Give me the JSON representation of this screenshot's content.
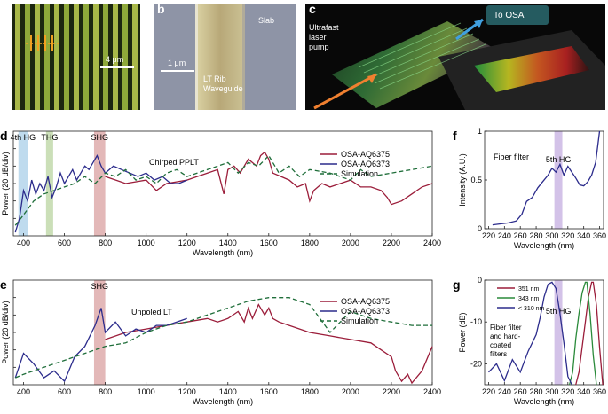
{
  "panels": {
    "a": {
      "label": "a",
      "scalebar": "4 μm"
    },
    "b": {
      "label": "b",
      "scalebar": "1 μm",
      "slab": "Slab",
      "waveguide_line1": "LT Rib",
      "waveguide_line2": "Waveguide"
    },
    "c": {
      "label": "c",
      "osa": "To OSA",
      "pump_line1": "Ultrafast",
      "pump_line2": "laser",
      "pump_line3": "pump"
    },
    "d": {
      "label": "d",
      "annotation": "Chirped PPLT",
      "bands": [
        "4th HG",
        "THG",
        "SHG"
      ]
    },
    "e": {
      "label": "e",
      "annotation": "Unpoled LT",
      "bands": [
        "SHG"
      ]
    },
    "f": {
      "label": "f",
      "annotation": "Fiber filter",
      "band": "5th HG"
    },
    "g": {
      "label": "g",
      "annotation_line1": "Fiber filter",
      "annotation_line2": "and hard-",
      "annotation_line3": "coated",
      "annotation_line4": "filters",
      "band": "5th HG"
    }
  },
  "colors": {
    "osa6375": "#9b1d3a",
    "osa6373": "#2c2c8c",
    "simulation": "#1f6e3a",
    "green343": "#2a8a3a"
  },
  "chart_data": [
    {
      "panel": "d",
      "type": "line",
      "xlabel": "Wavelength (nm)",
      "ylabel": "Power (20 dB/div)",
      "xlim": [
        350,
        2400
      ],
      "xticks": [
        400,
        600,
        800,
        1000,
        1200,
        1400,
        1600,
        1800,
        2000,
        2200,
        2400
      ],
      "legend": [
        "OSA-AQ6375",
        "OSA-AQ6373",
        "Simulation"
      ],
      "legend_position": "top-right",
      "shaded_bands": [
        {
          "label": "4th HG",
          "range": [
            375,
            420
          ],
          "color": "#a9cfe8"
        },
        {
          "label": "THG",
          "range": [
            510,
            545
          ],
          "color": "#b9d4a0"
        },
        {
          "label": "SHG",
          "range": [
            745,
            800
          ],
          "color": "#d9a0a0"
        }
      ],
      "series": [
        {
          "name": "OSA-AQ6375",
          "x": [
            800,
            900,
            1000,
            1050,
            1100,
            1200,
            1250,
            1300,
            1350,
            1380,
            1400,
            1430,
            1460,
            1500,
            1540,
            1560,
            1580,
            1600,
            1620,
            1660,
            1700,
            1740,
            1780,
            1800,
            1820,
            1860,
            1900,
            1950,
            2000,
            2050,
            2100,
            2150,
            2180,
            2200,
            2250,
            2300,
            2350,
            2400
          ],
          "y": [
            3.4,
            3.0,
            3.2,
            2.6,
            3.0,
            3.2,
            3.4,
            3.6,
            3.8,
            2.4,
            3.8,
            4.0,
            3.6,
            4.4,
            4.0,
            4.6,
            4.8,
            4.4,
            3.6,
            3.4,
            3.2,
            2.8,
            3.0,
            2.0,
            2.6,
            3.0,
            2.8,
            3.0,
            3.2,
            2.8,
            2.8,
            2.6,
            2.2,
            1.8,
            2.0,
            2.4,
            2.8,
            3.0
          ]
        },
        {
          "name": "OSA-AQ6373",
          "x": [
            360,
            380,
            400,
            420,
            440,
            460,
            480,
            500,
            520,
            540,
            560,
            580,
            600,
            620,
            640,
            660,
            680,
            700,
            720,
            740,
            760,
            780,
            800,
            840,
            880,
            920,
            960,
            1000,
            1040,
            1080,
            1120,
            1160,
            1200
          ],
          "y": [
            0.2,
            1.0,
            2.6,
            2.0,
            3.2,
            2.4,
            3.0,
            2.6,
            3.4,
            2.2,
            2.8,
            3.6,
            3.0,
            3.4,
            3.8,
            3.2,
            3.6,
            4.0,
            3.8,
            4.2,
            4.6,
            4.0,
            3.6,
            4.0,
            3.8,
            3.6,
            3.4,
            3.6,
            3.2,
            3.4,
            3.0,
            3.0,
            3.2
          ]
        },
        {
          "name": "Simulation",
          "x": [
            360,
            400,
            450,
            500,
            550,
            600,
            650,
            700,
            750,
            800,
            850,
            900,
            950,
            1000,
            1050,
            1100,
            1150,
            1200,
            1300,
            1400,
            1450,
            1500,
            1550,
            1600,
            1650,
            1700,
            1750,
            1800,
            1900,
            2000,
            2050,
            2100,
            2200,
            2300,
            2400
          ],
          "y": [
            0.6,
            1.2,
            2.0,
            2.4,
            2.6,
            2.8,
            3.0,
            3.4,
            3.0,
            3.6,
            3.4,
            3.8,
            3.2,
            3.4,
            3.0,
            3.6,
            3.8,
            3.4,
            3.8,
            4.2,
            3.6,
            4.2,
            4.0,
            4.6,
            3.6,
            4.0,
            3.4,
            3.8,
            3.6,
            3.2,
            3.8,
            3.4,
            3.6,
            3.8,
            4.0
          ]
        }
      ]
    },
    {
      "panel": "e",
      "type": "line",
      "xlabel": "Wavelength (nm)",
      "ylabel": "Power (20 dB/div)",
      "xlim": [
        350,
        2400
      ],
      "xticks": [
        400,
        600,
        800,
        1000,
        1200,
        1400,
        1600,
        1800,
        2000,
        2200,
        2400
      ],
      "legend": [
        "OSA-AQ6375",
        "OSA-AQ6373",
        "Simulation"
      ],
      "legend_position": "top-right",
      "shaded_bands": [
        {
          "label": "SHG",
          "range": [
            745,
            800
          ],
          "color": "#d9a0a0"
        }
      ],
      "series": [
        {
          "name": "OSA-AQ6375",
          "x": [
            800,
            900,
            1000,
            1100,
            1200,
            1300,
            1350,
            1400,
            1450,
            1480,
            1500,
            1520,
            1550,
            1580,
            1600,
            1620,
            1650,
            1700,
            1800,
            1900,
            2000,
            2100,
            2150,
            2200,
            2220,
            2250,
            2280,
            2300,
            2350,
            2400
          ],
          "y": [
            2.6,
            3.0,
            3.2,
            3.4,
            3.6,
            3.8,
            3.6,
            3.8,
            4.2,
            3.6,
            4.4,
            3.8,
            4.6,
            4.0,
            4.4,
            3.8,
            3.6,
            3.4,
            3.0,
            2.8,
            2.6,
            2.4,
            2.0,
            1.6,
            0.8,
            0.2,
            0.6,
            0.1,
            0.8,
            2.2
          ]
        },
        {
          "name": "OSA-AQ6373",
          "x": [
            360,
            400,
            450,
            500,
            550,
            600,
            650,
            700,
            750,
            780,
            800,
            850,
            900,
            950,
            1000,
            1050,
            1100,
            1150,
            1200
          ],
          "y": [
            0.4,
            1.8,
            1.2,
            0.4,
            0.8,
            0.2,
            1.6,
            2.2,
            3.4,
            4.4,
            3.0,
            3.6,
            2.8,
            3.2,
            3.0,
            3.4,
            3.4,
            3.6,
            3.8
          ]
        },
        {
          "name": "Simulation",
          "x": [
            360,
            400,
            500,
            600,
            700,
            800,
            900,
            1000,
            1100,
            1200,
            1300,
            1400,
            1500,
            1600,
            1700,
            1800,
            1900,
            2000,
            2100,
            2200,
            2300,
            2400
          ],
          "y": [
            0.4,
            0.6,
            1.0,
            1.4,
            1.8,
            2.2,
            2.4,
            3.0,
            3.4,
            3.6,
            4.0,
            4.4,
            4.8,
            5.0,
            5.0,
            4.6,
            3.0,
            4.2,
            3.8,
            3.6,
            3.4,
            3.4
          ]
        }
      ]
    },
    {
      "panel": "f",
      "type": "line",
      "xlabel": "Wavelength (nm)",
      "ylabel": "Intensity (A.U.)",
      "xlim": [
        215,
        365
      ],
      "ylim": [
        0,
        1
      ],
      "xticks": [
        220,
        240,
        260,
        280,
        300,
        320,
        340,
        360
      ],
      "yticks": [
        0,
        0.5,
        1
      ],
      "shaded_bands": [
        {
          "label": "5th HG",
          "range": [
            303,
            313
          ],
          "color": "#c4aee0"
        }
      ],
      "series": [
        {
          "name": "",
          "x": [
            225,
            235,
            245,
            255,
            262,
            268,
            275,
            282,
            288,
            295,
            300,
            305,
            310,
            315,
            320,
            325,
            330,
            335,
            340,
            345,
            350,
            355,
            360
          ],
          "y": [
            0.04,
            0.05,
            0.06,
            0.08,
            0.15,
            0.28,
            0.32,
            0.42,
            0.48,
            0.55,
            0.62,
            0.58,
            0.66,
            0.55,
            0.64,
            0.58,
            0.52,
            0.45,
            0.44,
            0.48,
            0.55,
            0.68,
            1.0
          ]
        }
      ]
    },
    {
      "panel": "g",
      "type": "line",
      "xlabel": "Wavelength (nm)",
      "ylabel": "Power (dB)",
      "xlim": [
        215,
        365
      ],
      "ylim": [
        -25,
        0
      ],
      "xticks": [
        220,
        240,
        260,
        280,
        300,
        320,
        340,
        360
      ],
      "yticks": [
        0,
        -10,
        -20
      ],
      "legend": [
        "351 nm",
        "343 nm",
        "< 310 nm"
      ],
      "legend_position": "top-left",
      "shaded_bands": [
        {
          "label": "5th HG",
          "range": [
            303,
            313
          ],
          "color": "#c4aee0"
        }
      ],
      "series": [
        {
          "name": "351 nm",
          "x": [
            330,
            334,
            338,
            342,
            346,
            350,
            352,
            356,
            360,
            364
          ],
          "y": [
            -25,
            -22,
            -16,
            -10,
            -4,
            -0.5,
            -0.5,
            -6,
            -16,
            -25
          ]
        },
        {
          "name": "343 nm",
          "x": [
            322,
            326,
            330,
            334,
            338,
            342,
            344,
            348,
            352,
            356
          ],
          "y": [
            -25,
            -22,
            -14,
            -8,
            -3,
            -0.5,
            -0.5,
            -8,
            -18,
            -25
          ]
        },
        {
          "name": "< 310 nm",
          "x": [
            220,
            230,
            240,
            250,
            260,
            270,
            280,
            285,
            290,
            295,
            300,
            305,
            310,
            315,
            320,
            325
          ],
          "y": [
            -22,
            -20,
            -24,
            -19,
            -22,
            -17,
            -13,
            -9,
            -4,
            -1,
            -0.5,
            -2,
            -8,
            -15,
            -23,
            -25
          ]
        }
      ]
    }
  ]
}
